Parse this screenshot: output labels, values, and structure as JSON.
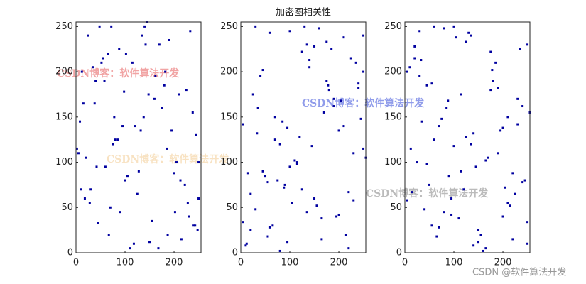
{
  "chart_data": [
    {
      "type": "scatter",
      "color": "#0000a0",
      "xlim": [
        0,
        255
      ],
      "ylim": [
        0,
        255
      ],
      "xticks": [
        0,
        100,
        200
      ],
      "yticks": [
        0,
        50,
        100,
        150,
        200,
        250
      ],
      "x": [
        12,
        45,
        78,
        200,
        233,
        150,
        98,
        5,
        250,
        170,
        60,
        120,
        187,
        34,
        222,
        140,
        90,
        15,
        245,
        110,
        65,
        205,
        180,
        28,
        135,
        75,
        240,
        160,
        52,
        100,
        215,
        8,
        190,
        125,
        40,
        85,
        230,
        145,
        20,
        175,
        248,
        55,
        105,
        195,
        70,
        162,
        30,
        210,
        118,
        88,
        2,
        238,
        155,
        48,
        128,
        182,
        18,
        225,
        95,
        67,
        142,
        250,
        38,
        202,
        115,
        80,
        168,
        25,
        213,
        138,
        58,
        243,
        102,
        185,
        10,
        148,
        72,
        228,
        132,
        42
      ],
      "y": [
        200,
        33,
        150,
        88,
        245,
        12,
        178,
        110,
        60,
        230,
        95,
        140,
        20,
        205,
        75,
        250,
        45,
        165,
        130,
        5,
        220,
        100,
        185,
        55,
        240,
        120,
        30,
        170,
        210,
        80,
        15,
        145,
        235,
        65,
        190,
        125,
        40,
        255,
        105,
        160,
        25,
        215,
        85,
        135,
        50,
        195,
        70,
        175,
        10,
        225,
        115,
        155,
        35,
        250,
        90,
        200,
        60,
        180,
        140,
        20,
        230,
        100,
        165,
        45,
        210,
        125,
        5,
        240,
        80,
        150,
        190,
        30,
        220,
        115,
        70,
        175,
        250,
        55,
        135,
        95
      ]
    },
    {
      "type": "scatter",
      "title": "加密图相关性",
      "color": "#0000a0",
      "xlim": [
        0,
        255
      ],
      "ylim": [
        0,
        255
      ],
      "xticks": [
        0,
        100,
        200
      ],
      "yticks": [
        0,
        50,
        100,
        150,
        200,
        250
      ],
      "x": [
        200,
        33,
        150,
        88,
        245,
        12,
        178,
        110,
        60,
        230,
        95,
        140,
        20,
        205,
        75,
        250,
        45,
        165,
        130,
        5,
        220,
        100,
        185,
        55,
        240,
        120,
        30,
        170,
        210,
        80,
        15,
        145,
        235,
        65,
        190,
        125,
        40,
        255,
        105,
        160,
        25,
        215,
        85,
        135,
        50,
        195,
        70,
        175,
        10,
        225,
        115,
        155,
        35,
        250,
        90,
        200,
        60,
        180,
        140,
        20,
        230,
        100,
        165,
        45,
        210,
        125,
        5,
        240,
        80,
        150,
        190,
        30,
        220,
        115,
        70,
        175,
        250,
        55,
        135,
        95
      ],
      "y": [
        42,
        132,
        228,
        72,
        148,
        10,
        185,
        102,
        243,
        58,
        138,
        213,
        25,
        168,
        80,
        115,
        202,
        38,
        250,
        142,
        67,
        95,
        225,
        18,
        182,
        128,
        48,
        155,
        238,
        2,
        88,
        118,
        210,
        30,
        162,
        70,
        195,
        105,
        55,
        248,
        175,
        20,
        145,
        230,
        85,
        40,
        125,
        190,
        8,
        215,
        100,
        52,
        160,
        240,
        75,
        135,
        28,
        180,
        205,
        65,
        110,
        245,
        15,
        90,
        140,
        222,
        34,
        187,
        120,
        60,
        170,
        250,
        5,
        98,
        150,
        233,
        200,
        78,
        45,
        12
      ]
    },
    {
      "type": "scatter",
      "color": "#0000a0",
      "xlim": [
        0,
        255
      ],
      "ylim": [
        0,
        255
      ],
      "xticks": [
        0,
        100,
        200
      ],
      "yticks": [
        0,
        50,
        100,
        150,
        200,
        250
      ],
      "x": [
        95,
        135,
        55,
        250,
        175,
        70,
        115,
        220,
        30,
        190,
        150,
        80,
        240,
        5,
        125,
        210,
        45,
        165,
        100,
        230,
        20,
        140,
        180,
        60,
        200,
        90,
        250,
        35,
        155,
        115,
        225,
        10,
        175,
        70,
        195,
        50,
        135,
        85,
        215,
        25,
        160,
        105,
        255,
        40,
        125,
        190,
        65,
        235,
        145,
        15,
        80,
        210,
        170,
        30,
        120,
        240,
        55,
        185,
        100,
        220,
        5,
        130,
        165,
        45,
        250,
        75,
        205,
        20,
        140,
        95,
        230,
        60,
        110,
        178,
        12,
        245,
        88,
        150,
        33,
        200
      ],
      "y": [
        60,
        120,
        187,
        34,
        222,
        140,
        90,
        15,
        245,
        110,
        12,
        45,
        78,
        200,
        233,
        150,
        98,
        5,
        250,
        170,
        215,
        8,
        190,
        125,
        40,
        85,
        230,
        145,
        20,
        175,
        65,
        205,
        180,
        28,
        135,
        75,
        240,
        160,
        52,
        100,
        2,
        238,
        155,
        48,
        128,
        182,
        18,
        225,
        95,
        67,
        248,
        55,
        105,
        195,
        70,
        162,
        30,
        210,
        118,
        88,
        58,
        243,
        102,
        185,
        10,
        148,
        72,
        228,
        132,
        42,
        142,
        250,
        38,
        202,
        115,
        80,
        168,
        25,
        213,
        138
      ]
    }
  ],
  "watermarks": [
    "CSDN博客：软件算法开发",
    "CSDN博客：软件算法开发",
    "CSDN博客：软件算法开发",
    "CSDN博客：软件算法开发"
  ],
  "footer": "CSDN @软件算法开发"
}
